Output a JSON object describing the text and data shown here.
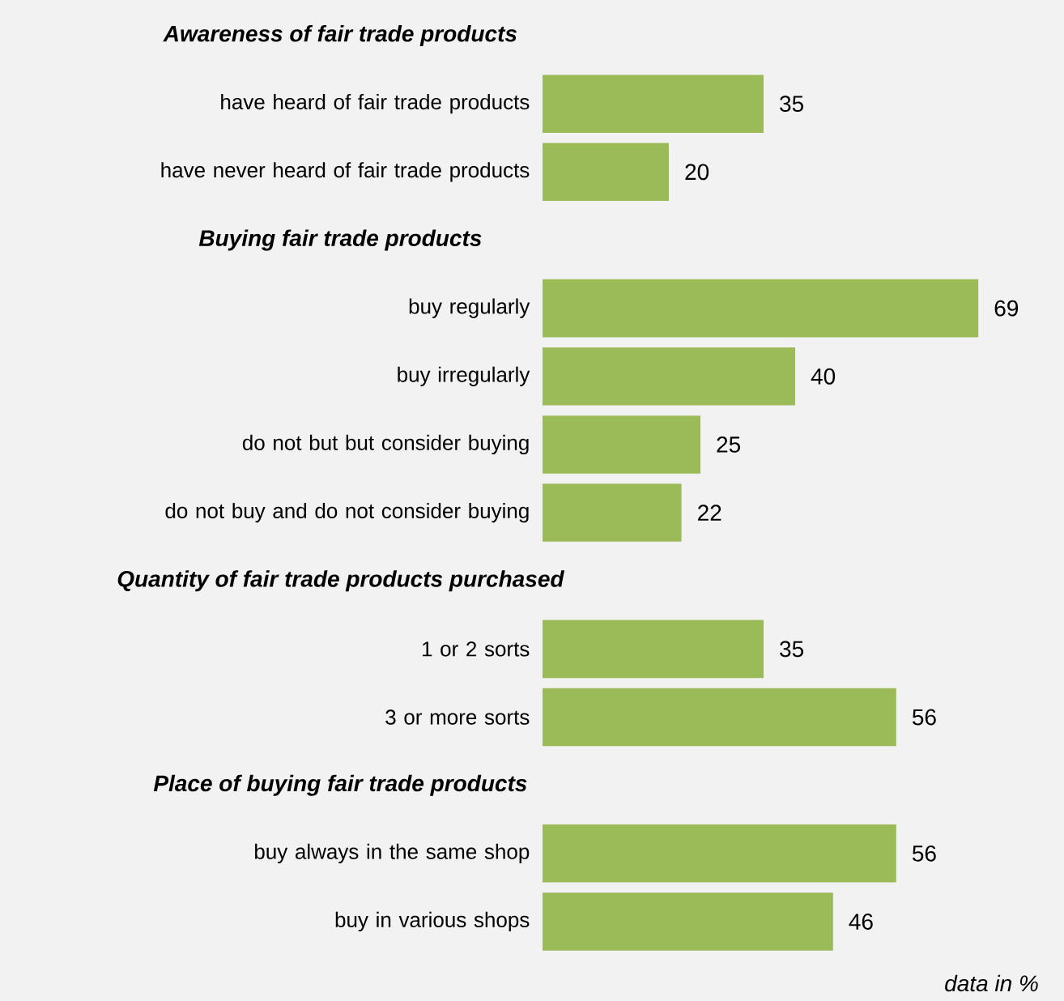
{
  "chart_data": {
    "type": "bar",
    "orientation": "horizontal",
    "data_labels": true,
    "color": "#9bbb59",
    "categories": [
      null,
      "have heard of fair trade products",
      "have never heard of fair trade products",
      null,
      "buy regularly",
      "buy irregularly",
      "do not but but consider buying",
      "do not buy and do not consider buying",
      null,
      "1 or 2 sorts",
      "3 or more sorts",
      null,
      "buy always in the same shop",
      "buy in various shops"
    ],
    "values": [
      null,
      35,
      20,
      null,
      69,
      40,
      25,
      22,
      null,
      35,
      56,
      null,
      56,
      46
    ],
    "annotations": [
      "Awareness of fair trade products",
      "Buying fair trade products",
      "Quantity of fair trade products purchased",
      "Place of buying fair trade products",
      "data in %"
    ]
  }
}
